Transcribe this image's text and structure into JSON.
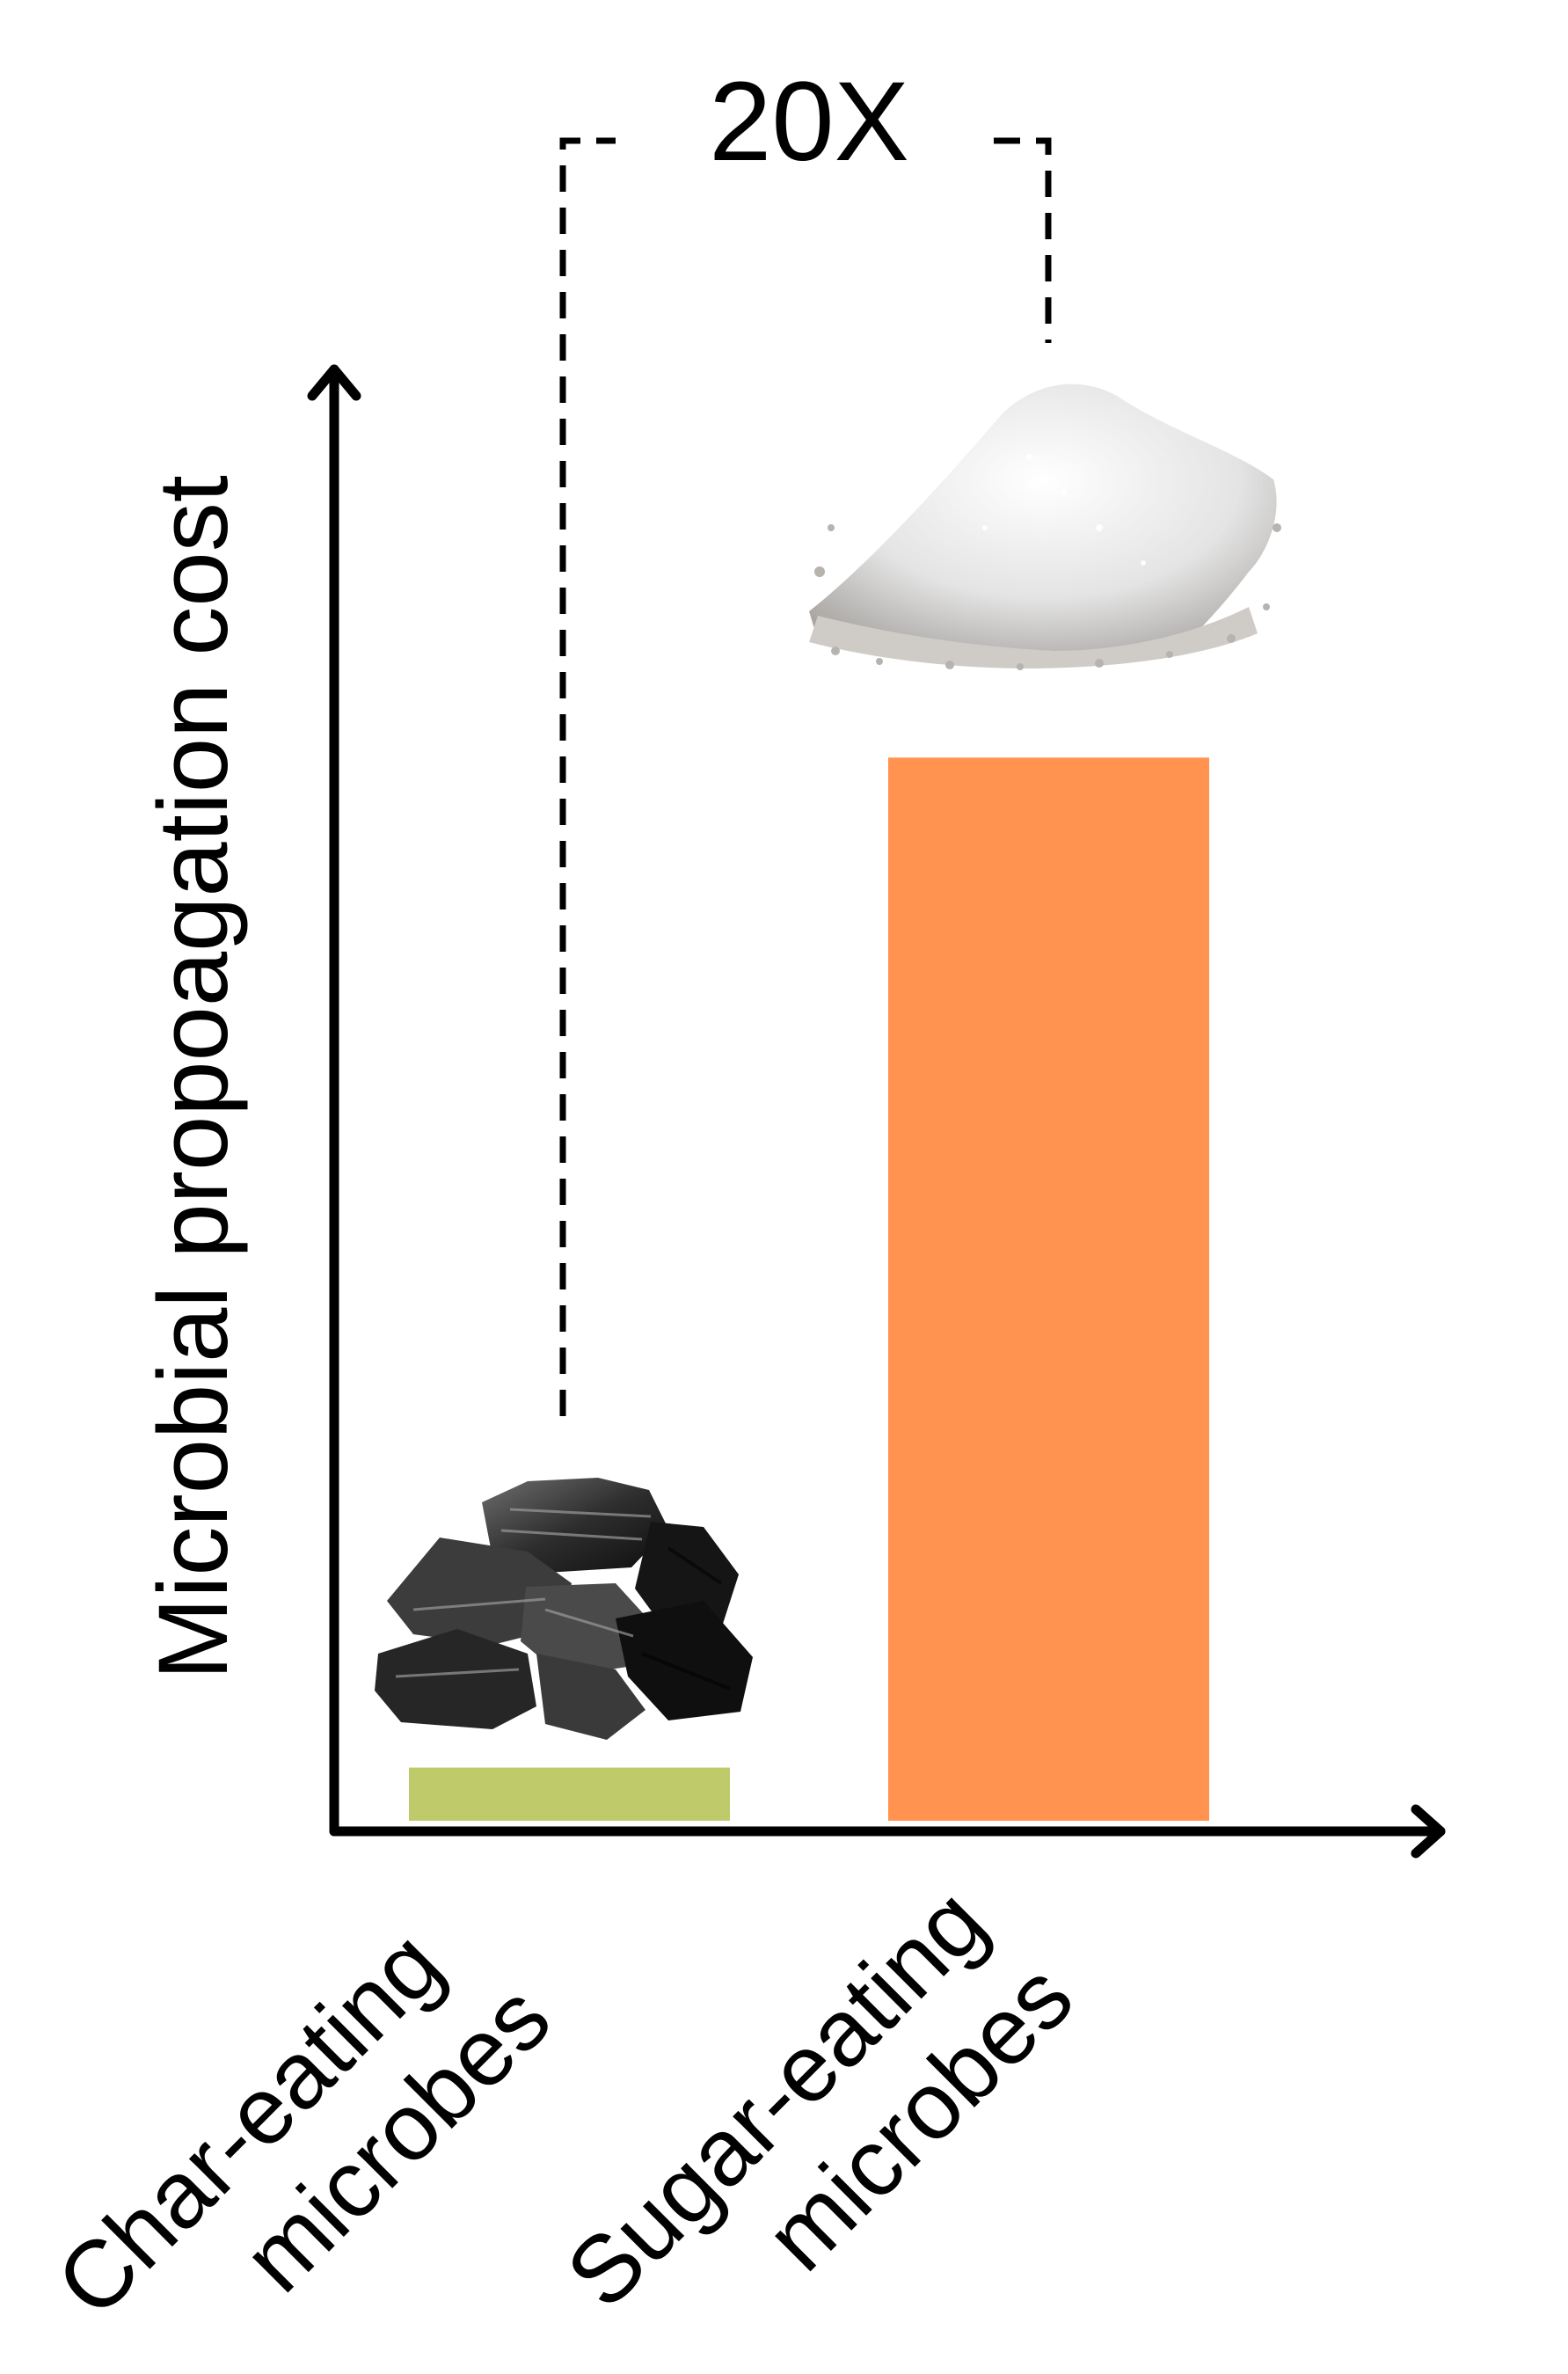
{
  "chart_data": {
    "type": "bar",
    "categories": [
      "Char-eating microbes",
      "Sugar-eating microbes"
    ],
    "category_label_lines": [
      [
        "Char-eating",
        "microbes"
      ],
      [
        "Sugar-eating",
        "microbes"
      ]
    ],
    "values": [
      1,
      20
    ],
    "colors": [
      "#BFCB6A",
      "#FF934F"
    ],
    "ylabel": "Microbial propoagation cost",
    "xlabel": "",
    "ylim": [
      0,
      23
    ],
    "annotation": "20X",
    "category_icons": [
      "charcoal-icon",
      "sugar-pile-icon"
    ],
    "grid": false,
    "legend": "none"
  }
}
